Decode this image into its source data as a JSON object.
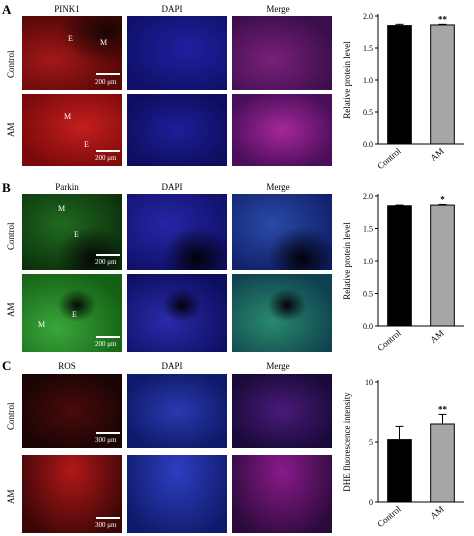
{
  "panels": [
    {
      "letter": "A",
      "marker": "PINK1",
      "dapi": "DAPI",
      "merge": "Merge",
      "rows": [
        "Control",
        "AM"
      ],
      "tissue_labels": {
        "control": [
          "E",
          "M"
        ],
        "am": [
          "M",
          "E"
        ]
      },
      "scale": "200 μm",
      "colors": {
        "marker": "#8a0d0d",
        "merge": "#6a1a6a",
        "dapi": "#1a1a8c"
      }
    },
    {
      "letter": "B",
      "marker": "Parkin",
      "dapi": "DAPI",
      "merge": "Merge",
      "rows": [
        "Control",
        "AM"
      ],
      "tissue_labels": {
        "control": [
          "M",
          "E"
        ],
        "am": [
          "M",
          "E"
        ]
      },
      "scale": "200 μm",
      "colors": {
        "marker": "#145214",
        "merge": "#1a4a6a",
        "dapi": "#1a1a8c"
      }
    },
    {
      "letter": "C",
      "marker": "ROS",
      "dapi": "DAPI",
      "merge": "Merge",
      "rows": [
        "Control",
        "AM"
      ],
      "tissue_labels": {
        "control": [],
        "am": []
      },
      "scale": "300 μm",
      "colors": {
        "marker": "#7a1010",
        "merge": "#5a1a5a",
        "dapi": "#1f2f9c"
      }
    }
  ],
  "chart_data": [
    {
      "type": "bar",
      "categories": [
        "Control",
        "AM"
      ],
      "values": [
        1.85,
        1.86
      ],
      "errors": [
        0.02,
        0.01
      ],
      "colors": [
        "#000000",
        "#a6a6a6"
      ],
      "significance": [
        "",
        "**"
      ],
      "ylabel": "Relative protein level",
      "ylim": [
        0,
        2.0
      ],
      "yticks": [
        "0.0",
        "0.5",
        "1.0",
        "1.5",
        "2.0"
      ],
      "ytick_values": [
        0,
        0.5,
        1.0,
        1.5,
        2.0
      ]
    },
    {
      "type": "bar",
      "categories": [
        "Control",
        "AM"
      ],
      "values": [
        1.85,
        1.86
      ],
      "errors": [
        0.01,
        0.01
      ],
      "colors": [
        "#000000",
        "#a6a6a6"
      ],
      "significance": [
        "",
        "*"
      ],
      "ylabel": "Relative protein level",
      "ylim": [
        0,
        2.0
      ],
      "yticks": [
        "0.0",
        "0.5",
        "1.0",
        "1.5",
        "2.0"
      ],
      "ytick_values": [
        0,
        0.5,
        1.0,
        1.5,
        2.0
      ]
    },
    {
      "type": "bar",
      "categories": [
        "Control",
        "AM"
      ],
      "values": [
        5.2,
        6.5
      ],
      "errors": [
        1.1,
        0.8
      ],
      "colors": [
        "#000000",
        "#a6a6a6"
      ],
      "significance": [
        "",
        "**"
      ],
      "ylabel": "DHE fluorescence intensity",
      "ylim": [
        0,
        10
      ],
      "yticks": [
        "0",
        "5",
        "10"
      ],
      "ytick_values": [
        0,
        5,
        10
      ]
    }
  ]
}
